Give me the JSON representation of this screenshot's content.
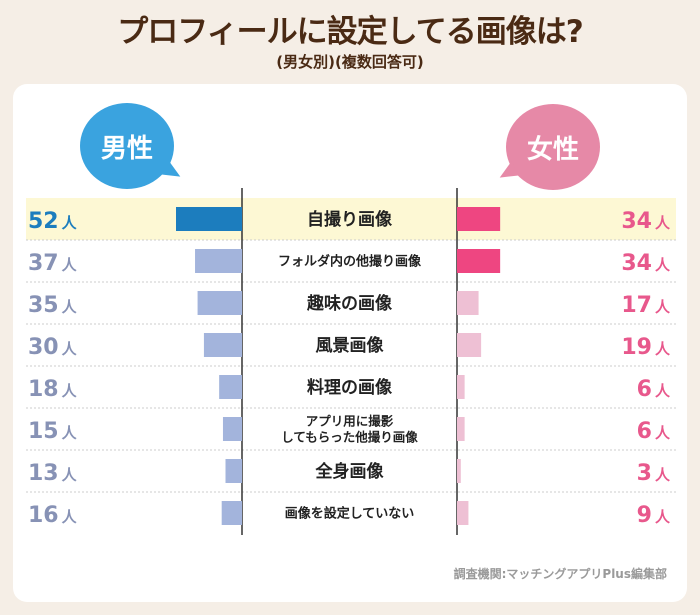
{
  "title": "プロフィールに設定してる画像は?",
  "subtitle": "(男女別)(複数回答可)",
  "legend": {
    "male": "男性",
    "female": "女性"
  },
  "unit": "人",
  "credit": "調査機関:マッチングアプリPlus編集部",
  "colors": {
    "male_top": "#1c7dbe",
    "male_bar": "#a3b4dc",
    "male_text_top": "#1c7dbe",
    "male_text": "#8792b5",
    "female_top": "#ee4681",
    "female_bar": "#eec0d4",
    "female_text": "#e8588c",
    "label": "#222222",
    "divider": "#333333",
    "row_line": "#cccccc"
  },
  "chart_data": {
    "type": "bar",
    "orientation": "horizontal-butterfly",
    "title": "プロフィールに設定してる画像は?",
    "subtitle": "(男女別)(複数回答可)",
    "unit": "人",
    "categories": [
      [
        "自撮り画像"
      ],
      [
        "フォルダ内の他撮り画像"
      ],
      [
        "趣味の画像"
      ],
      [
        "風景画像"
      ],
      [
        "料理の画像"
      ],
      [
        "アプリ用に撮影",
        "してもらった他撮り画像"
      ],
      [
        "全身画像"
      ],
      [
        "画像を設定していない"
      ]
    ],
    "series": [
      {
        "name": "男性",
        "values": [
          52,
          37,
          35,
          30,
          18,
          15,
          13,
          16
        ]
      },
      {
        "name": "女性",
        "values": [
          34,
          34,
          17,
          19,
          6,
          6,
          3,
          9
        ]
      }
    ],
    "xlim": [
      0,
      52
    ],
    "legend_position": "top"
  }
}
